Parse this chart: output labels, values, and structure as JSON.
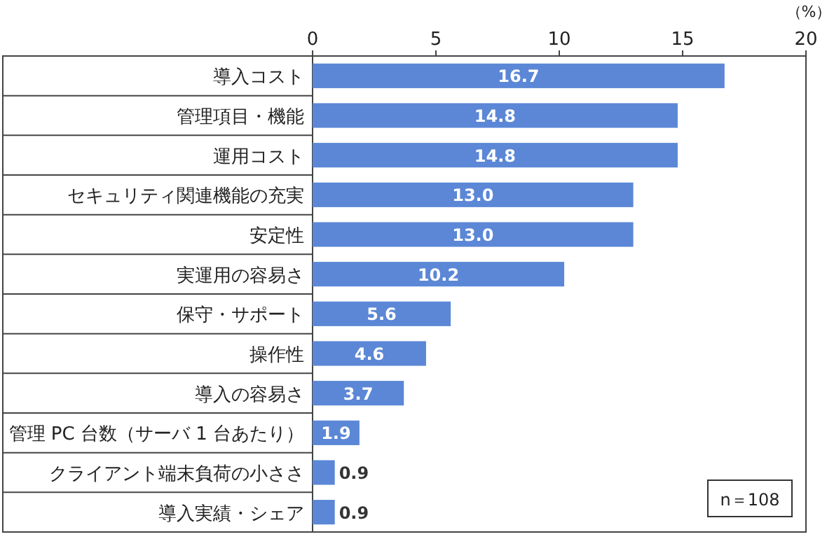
{
  "chart_data": {
    "type": "bar",
    "orientation": "horizontal",
    "xlabel": "（%）",
    "categories": [
      "導入コスト",
      "管理項目・機能",
      "運用コスト",
      "セキュリティ関連機能の充実",
      "安定性",
      "実運用の容易さ",
      "保守・サポート",
      "操作性",
      "導入の容易さ",
      "管理 PC 台数（サーバ 1 台あたり）",
      "クライアント端末負荷の小ささ",
      "導入実績・シェア"
    ],
    "values": [
      16.7,
      14.8,
      14.8,
      13.0,
      13.0,
      10.2,
      5.6,
      4.6,
      3.7,
      1.9,
      0.9,
      0.9
    ],
    "value_labels": [
      "16.7",
      "14.8",
      "14.8",
      "13.0",
      "13.0",
      "10.2",
      "5.6",
      "4.6",
      "3.7",
      "1.9",
      "0.9",
      "0.9"
    ],
    "color": "#5b87d6",
    "xlim": [
      0,
      20
    ],
    "xticks": [
      0,
      5,
      10,
      15,
      20
    ],
    "annotations": [
      "n＝108"
    ]
  }
}
